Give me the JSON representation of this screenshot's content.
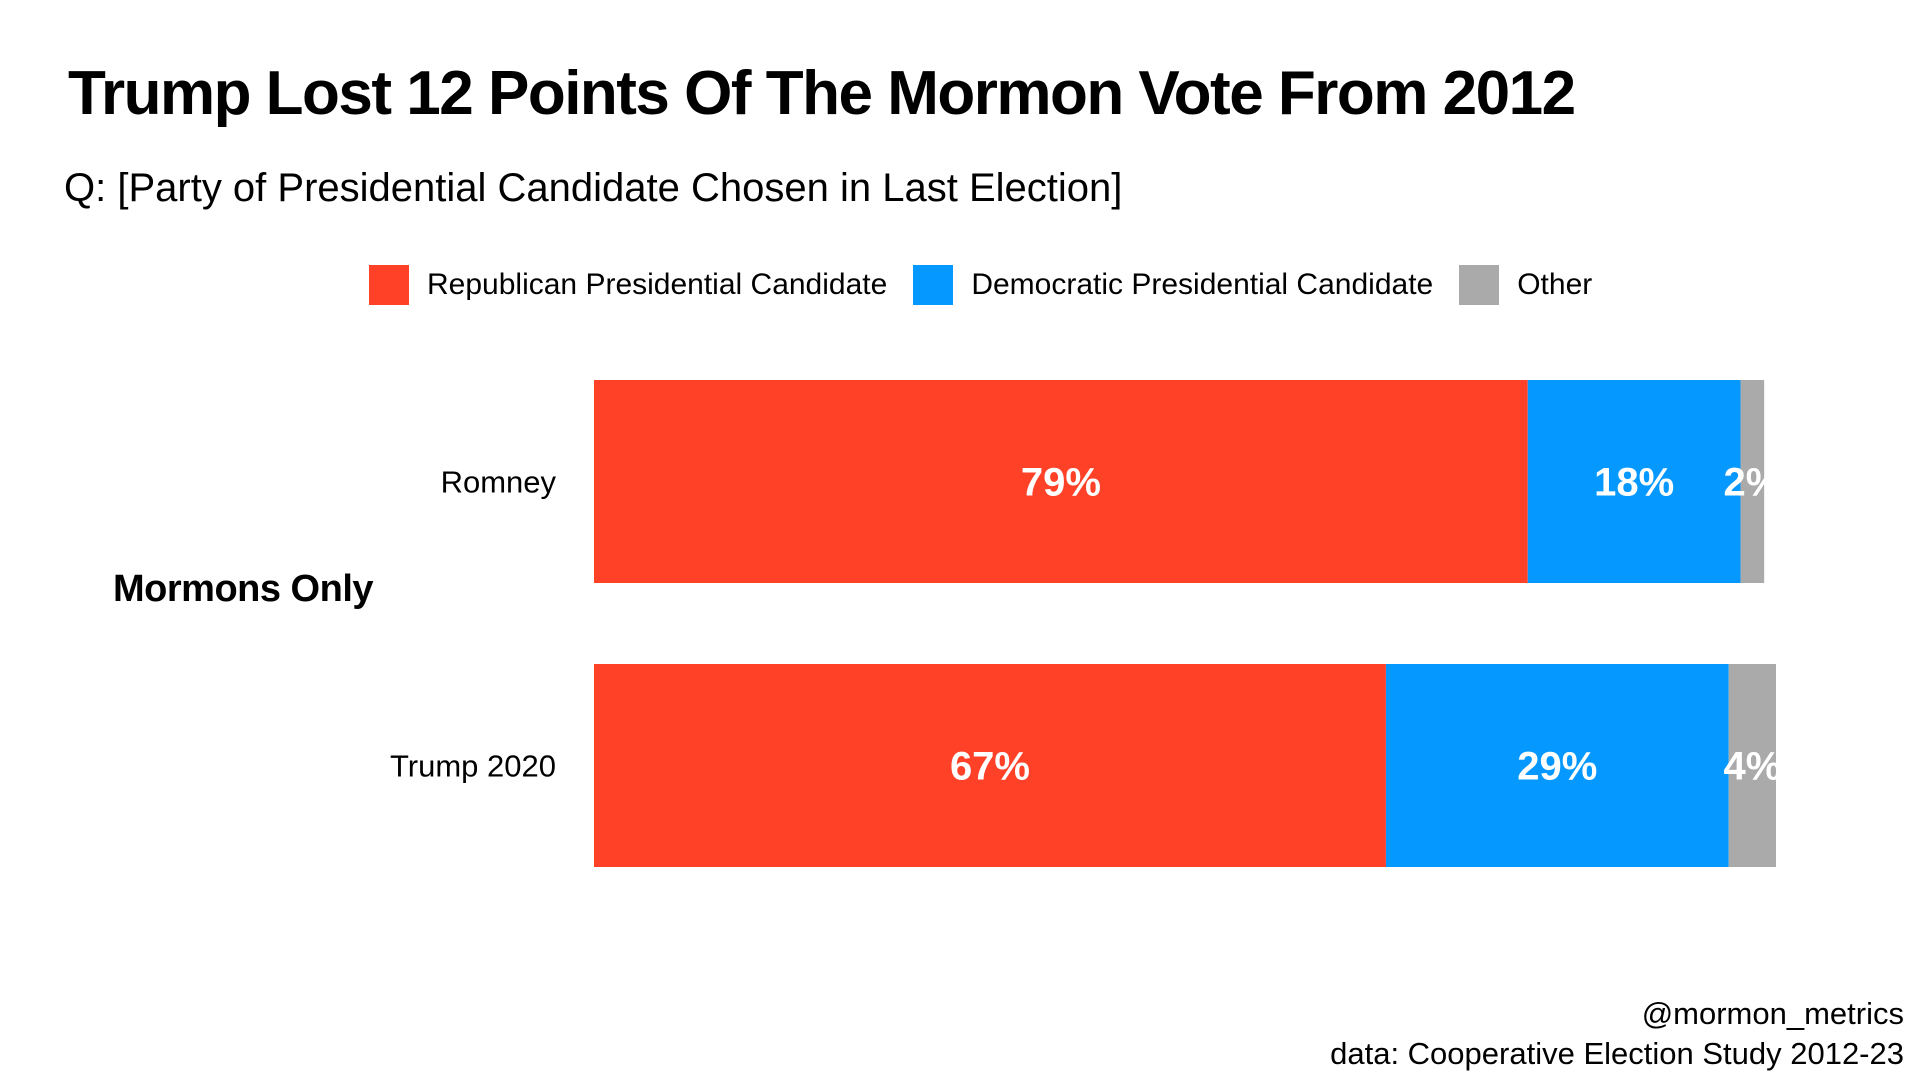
{
  "title": "Trump Lost 12 Points Of The Mormon Vote From 2012",
  "subtitle": "Q: [Party of Presidential Candidate Chosen in Last Election]",
  "facet_label": "Mormons Only",
  "credit": {
    "handle": "@mormon_metrics",
    "source": "data: Cooperative Election Study 2012-23"
  },
  "colors": {
    "republican": "#FF4128",
    "democratic": "#0599FF",
    "other": "#AAAAAA"
  },
  "chart_data": {
    "type": "bar",
    "orientation": "horizontal",
    "stacked": true,
    "categories": [
      "Romney",
      "Trump 2020"
    ],
    "series": [
      {
        "name": "Republican Presidential Candidate",
        "values": [
          79,
          67
        ],
        "labels": [
          "79%",
          "67%"
        ],
        "color": "#FF4128"
      },
      {
        "name": "Democratic Presidential Candidate",
        "values": [
          18,
          29
        ],
        "labels": [
          "18%",
          "29%"
        ],
        "color": "#0599FF"
      },
      {
        "name": "Other",
        "values": [
          2,
          4
        ],
        "labels": [
          "2%",
          "4%"
        ],
        "color": "#AAAAAA"
      }
    ],
    "xlim": [
      0,
      100
    ],
    "grid": false,
    "legend_position": "top"
  }
}
